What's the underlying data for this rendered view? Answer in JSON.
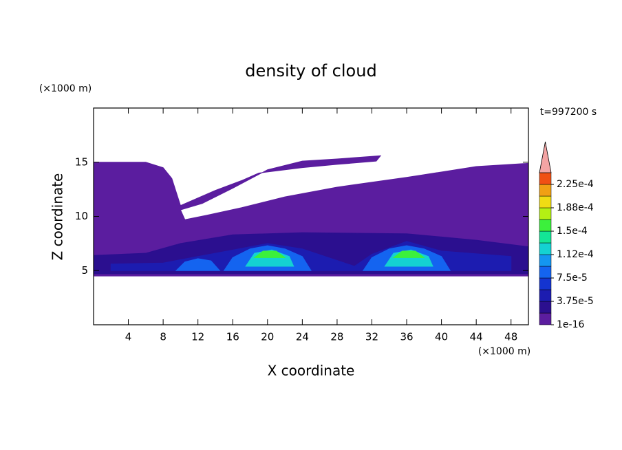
{
  "chart_data": {
    "type": "contour",
    "title": "density of cloud",
    "x_label": "X coordinate",
    "y_label": "Z coordinate",
    "x_unit": "(×1000 m)",
    "y_unit": "(×1000 m)",
    "annotation": "t=997200 s",
    "xlim": [
      0,
      50
    ],
    "ylim": [
      0,
      20
    ],
    "xticks": [
      4,
      8,
      12,
      16,
      20,
      24,
      28,
      32,
      36,
      40,
      44,
      48
    ],
    "yticks": [
      5,
      10,
      15
    ],
    "levels": [
      1e-16,
      1.875e-05,
      3.75e-05,
      5.625e-05,
      7.5e-05,
      9.375e-05,
      0.0001125,
      0.00013125,
      0.00015,
      0.00016875,
      0.0001875,
      0.00020625,
      0.000225,
      0.00024375
    ],
    "colors": [
      "#5b1d9f",
      "#2b0f8f",
      "#1c1cb0",
      "#1434d0",
      "#1464f0",
      "#1496f0",
      "#14d2d2",
      "#14e696",
      "#3cf03c",
      "#b4f014",
      "#f0dc14",
      "#f0a014",
      "#f05014"
    ],
    "extend_color": "#f4a4a4",
    "cticks": [
      1e-16,
      {
        "value": 3.75e-05,
        "label": "3.75e-5"
      },
      {
        "value": 7.5e-05,
        "label": "7.5e-5"
      },
      {
        "value": 0.0001125,
        "label": "1.12e-4"
      },
      {
        "value": 0.00015,
        "label": "1.5e-4"
      },
      {
        "value": 0.0001875,
        "label": "1.88e-4"
      },
      {
        "value": 0.000225,
        "label": "2.25e-4"
      }
    ],
    "regions": [
      {
        "value": 1e-16,
        "outline": [
          [
            0,
            4.5
          ],
          [
            50,
            4.5
          ],
          [
            50,
            14.9
          ],
          [
            44,
            14.6
          ],
          [
            36,
            13.6
          ],
          [
            28,
            12.7
          ],
          [
            22,
            11.8
          ],
          [
            17,
            10.8
          ],
          [
            13,
            10.1
          ],
          [
            10.5,
            9.7
          ],
          [
            10,
            10.6
          ],
          [
            12.5,
            11.2
          ],
          [
            16,
            12.6
          ],
          [
            20,
            14.3
          ],
          [
            24,
            15.1
          ],
          [
            28,
            15.3
          ],
          [
            33,
            15.6
          ],
          [
            32.5,
            15.1
          ],
          [
            28,
            14.8
          ],
          [
            24,
            14.5
          ],
          [
            19,
            14
          ],
          [
            17,
            13.3
          ],
          [
            14,
            12.4
          ],
          [
            10,
            11
          ],
          [
            9,
            13.5
          ],
          [
            8,
            14.5
          ],
          [
            6,
            15
          ],
          [
            0,
            15
          ]
        ]
      },
      {
        "value": 1.875e-05,
        "outline": [
          [
            0,
            4.7
          ],
          [
            50,
            4.7
          ],
          [
            50,
            7.2
          ],
          [
            44,
            7.8
          ],
          [
            36,
            8.4
          ],
          [
            24,
            8.5
          ],
          [
            16,
            8.3
          ],
          [
            10,
            7.5
          ],
          [
            6,
            6.6
          ],
          [
            0,
            6.4
          ]
        ]
      },
      {
        "value": 3.75e-05,
        "outline": [
          [
            2,
            5
          ],
          [
            48,
            5
          ],
          [
            48,
            6.3
          ],
          [
            40,
            6.8
          ],
          [
            36,
            7.7
          ],
          [
            32,
            6.5
          ],
          [
            30,
            5.4
          ],
          [
            27,
            6.2
          ],
          [
            24,
            7
          ],
          [
            20,
            7.5
          ],
          [
            16,
            6.9
          ],
          [
            12,
            6.3
          ],
          [
            8,
            5.7
          ],
          [
            2,
            5.6
          ]
        ]
      },
      {
        "value": 7.5e-05,
        "outline": [
          [
            9.5,
            5
          ],
          [
            14.5,
            5
          ],
          [
            13.5,
            5.9
          ],
          [
            12,
            6.1
          ],
          [
            10.5,
            5.8
          ]
        ]
      },
      {
        "value": 7.5e-05,
        "outline": [
          [
            15,
            5
          ],
          [
            25,
            5
          ],
          [
            24,
            6.3
          ],
          [
            22,
            7
          ],
          [
            20,
            7.3
          ],
          [
            18,
            7
          ],
          [
            16,
            6.2
          ]
        ]
      },
      {
        "value": 7.5e-05,
        "outline": [
          [
            31,
            5
          ],
          [
            41,
            5
          ],
          [
            40,
            6.3
          ],
          [
            38,
            7
          ],
          [
            36,
            7.3
          ],
          [
            34,
            7
          ],
          [
            32,
            6.2
          ]
        ]
      },
      {
        "value": 0.0001125,
        "outline": [
          [
            17.5,
            5.4
          ],
          [
            23,
            5.4
          ],
          [
            22.5,
            6.3
          ],
          [
            20.5,
            6.9
          ],
          [
            18.5,
            6.6
          ]
        ]
      },
      {
        "value": 0.0001125,
        "outline": [
          [
            33.5,
            5.4
          ],
          [
            39,
            5.4
          ],
          [
            38.5,
            6.3
          ],
          [
            36.5,
            6.9
          ],
          [
            34.5,
            6.6
          ]
        ]
      },
      {
        "value": 0.00015,
        "outline": [
          [
            18.5,
            6.2
          ],
          [
            22,
            6.2
          ],
          [
            21,
            6.8
          ],
          [
            19.5,
            6.8
          ]
        ]
      },
      {
        "value": 0.00015,
        "outline": [
          [
            34.5,
            6.2
          ],
          [
            38,
            6.2
          ],
          [
            37,
            6.8
          ],
          [
            35.5,
            6.8
          ]
        ]
      }
    ]
  }
}
